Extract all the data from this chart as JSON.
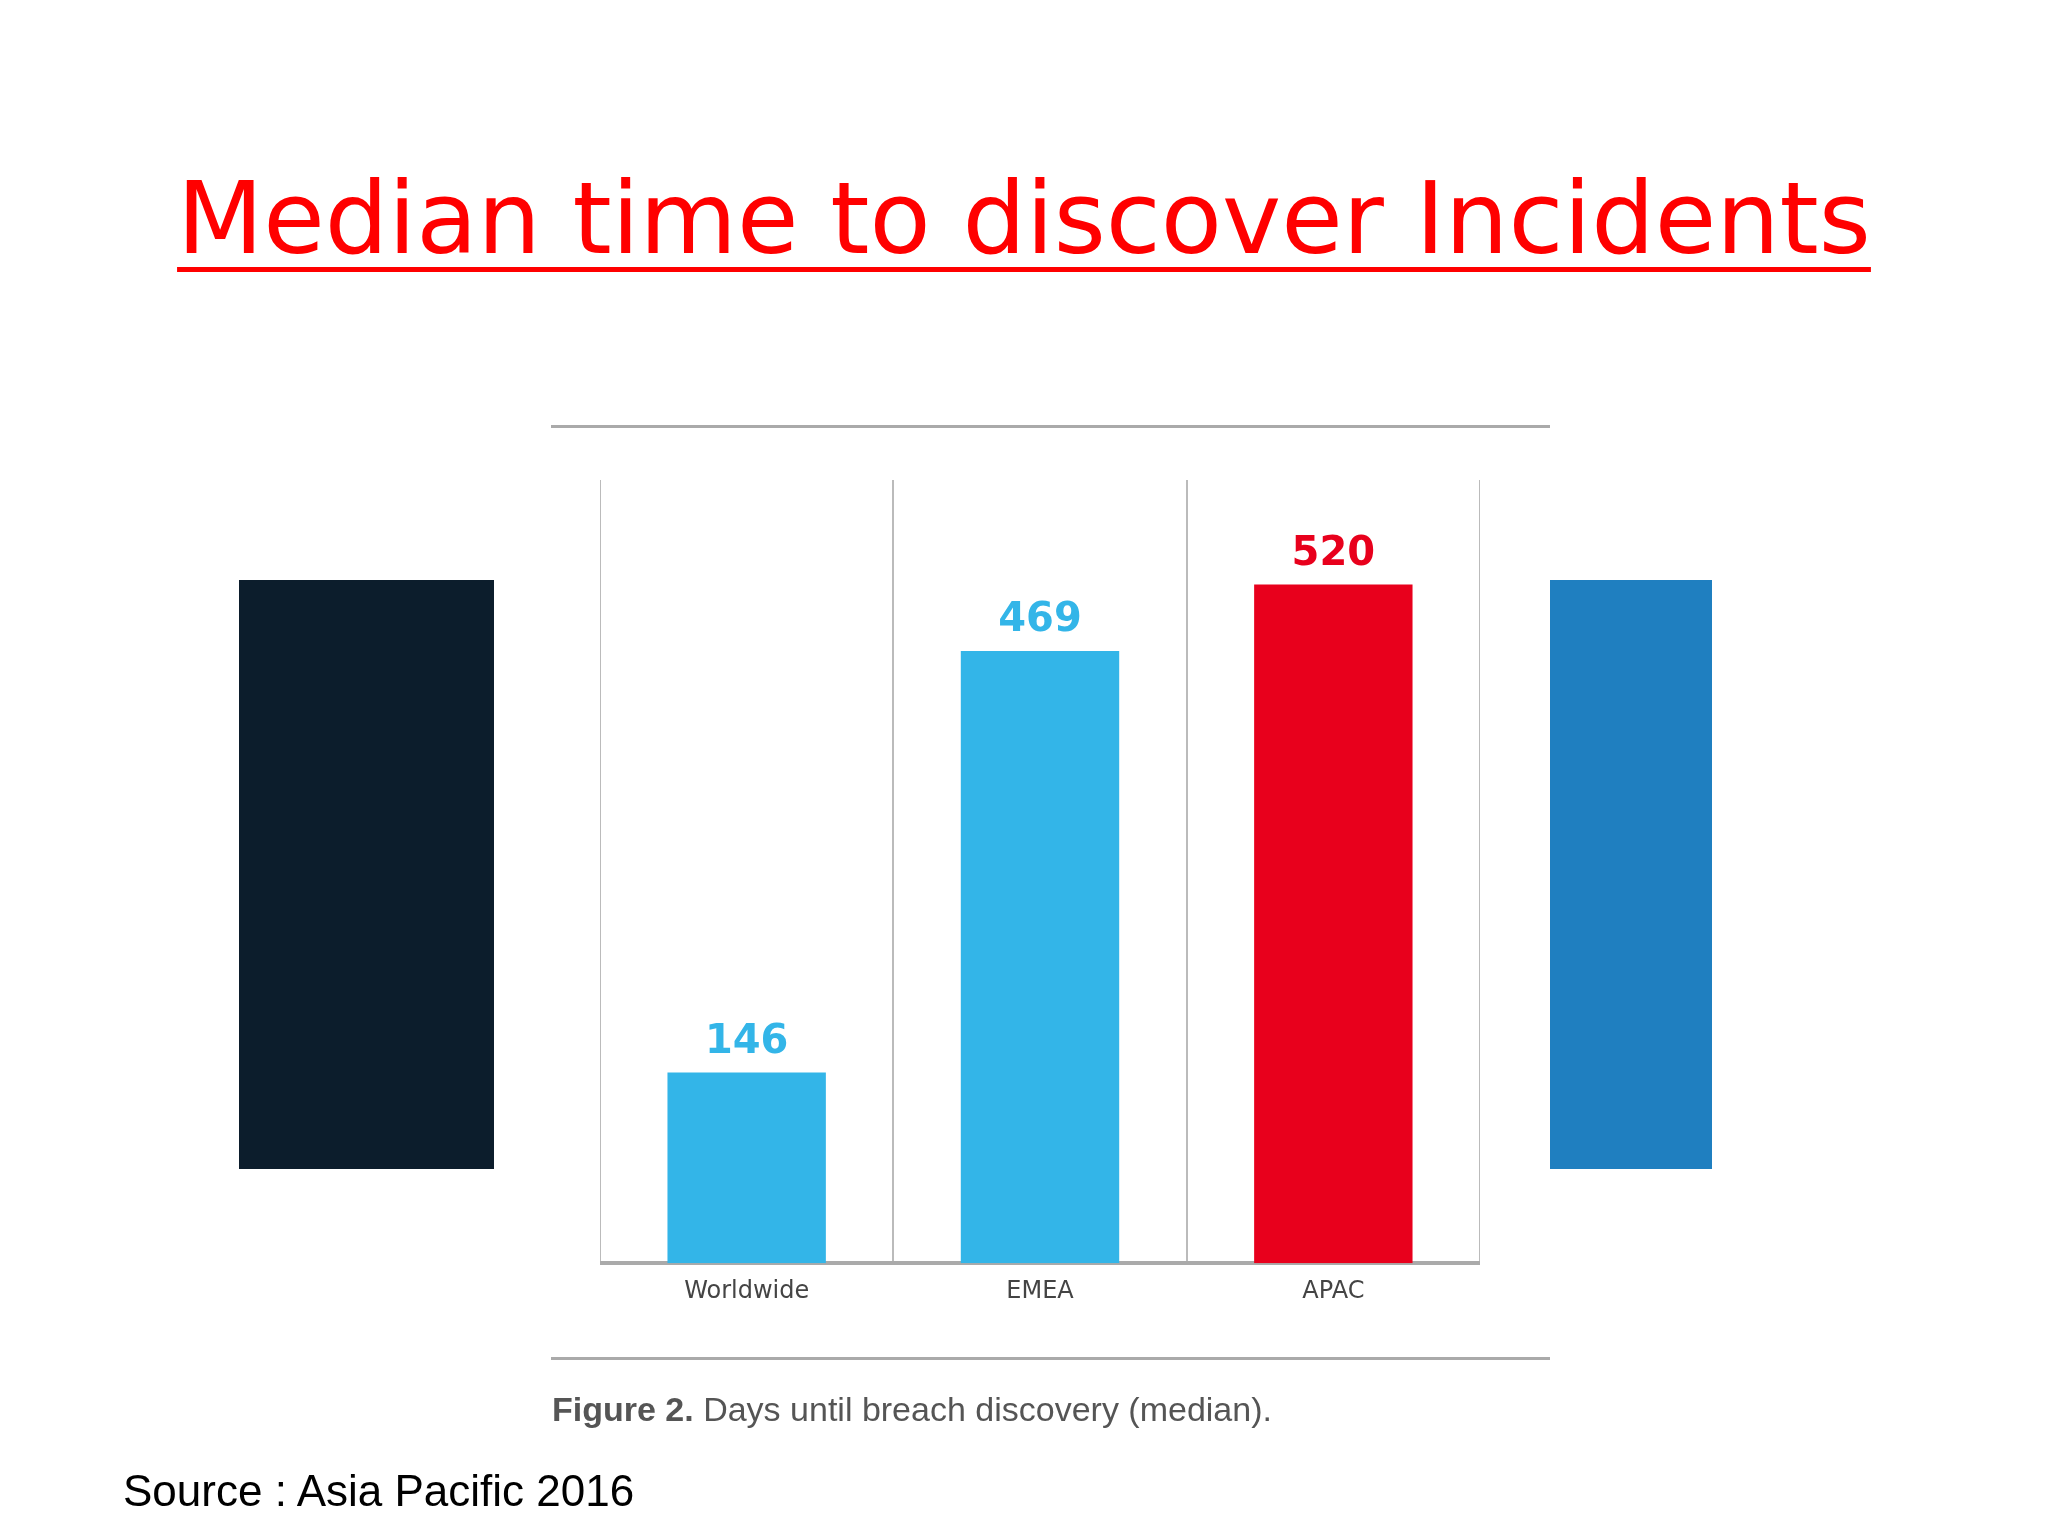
{
  "chart_data": {
    "type": "bar",
    "title": "Median time to discover Incidents",
    "categories": [
      "Worldwide",
      "EMEA",
      "APAC"
    ],
    "values": [
      146,
      469,
      520
    ],
    "colors": [
      "#33b5e8",
      "#33b5e8",
      "#e8001c"
    ],
    "data_labels": true,
    "grid": "x",
    "legend": false,
    "annotations": [
      "Figure 2. Days until breach discovery (median).",
      "Source : Asia Pacific 2016"
    ]
  }
}
